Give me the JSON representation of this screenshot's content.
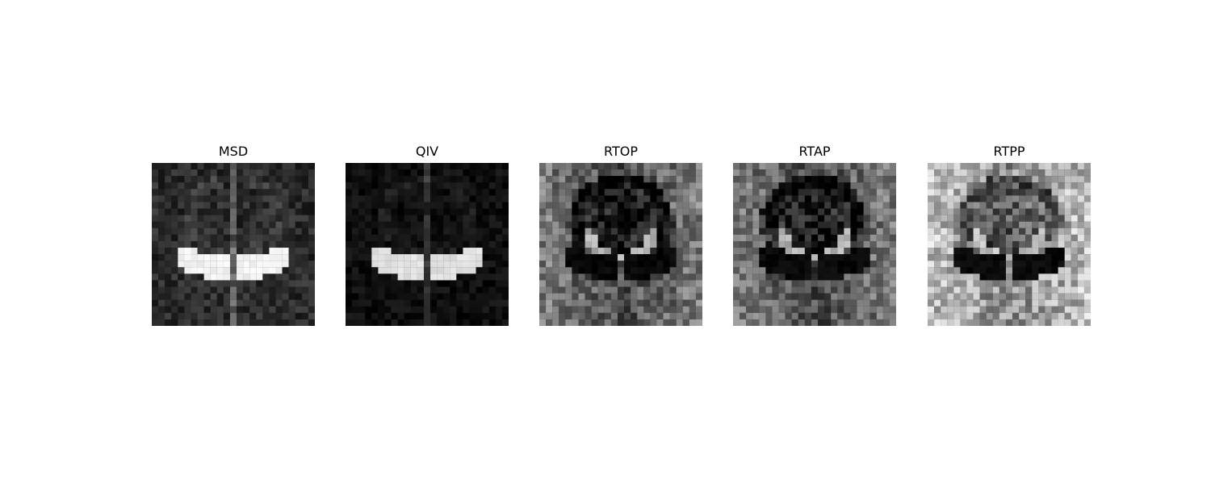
{
  "figure": {
    "background": "#ffffff",
    "panels": [
      {
        "title": "MSD",
        "grayscale_style": "bright-wings-on-dark"
      },
      {
        "title": "QIV",
        "grayscale_style": "bright-wings-on-black"
      },
      {
        "title": "RTOP",
        "grayscale_style": "dark-wings-on-gray"
      },
      {
        "title": "RTAP",
        "grayscale_style": "dark-wings-on-gray"
      },
      {
        "title": "RTPP",
        "grayscale_style": "dark-wings-on-light"
      }
    ]
  }
}
